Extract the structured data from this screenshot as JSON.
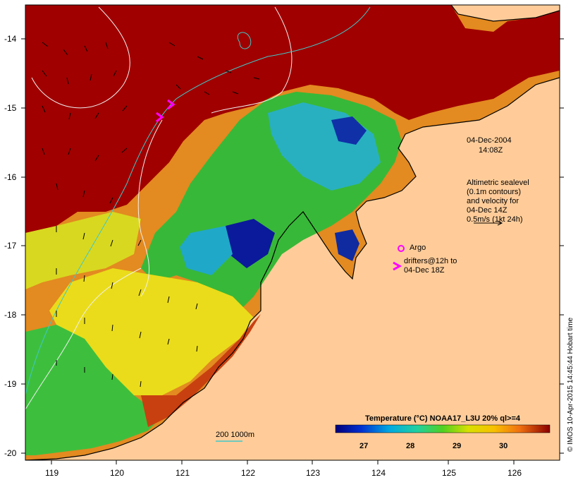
{
  "map": {
    "date_line1": "04-Dec-2004",
    "date_line2": "14:08Z",
    "altimetry_lines": [
      "Altimetric sealevel",
      "(0.1m contours)",
      "and velocity for",
      "04-Dec 14Z",
      "0.5m/s (1kt 24h)"
    ],
    "argo_label": "Argo",
    "drifter_lines": [
      "drifters@12h to",
      "04-Dec 18Z"
    ],
    "depth_label": "200  1000m",
    "colorbar_title": "Temperature (°C) NOAA17_L3U 20% ql>=4",
    "colorbar_ticks": [
      "27",
      "28",
      "29",
      "30"
    ],
    "lat_ticks": [
      "-14",
      "-15",
      "-16",
      "-17",
      "-18",
      "-19",
      "-20"
    ],
    "lon_ticks": [
      "119",
      "120",
      "121",
      "122",
      "123",
      "124",
      "125",
      "126"
    ],
    "credit": "© IMOS 10-Apr-2015 14:45:44 Hobart time",
    "colors": {
      "land": "#FFCC99",
      "warm": "#A00000",
      "orange": "#E07A10",
      "yellow": "#F2E010",
      "green": "#3FBF30",
      "cyan": "#20B8D0",
      "blue": "#0A1A9A",
      "marker": "#FF00FF",
      "contour": "#40C8C8"
    }
  }
}
